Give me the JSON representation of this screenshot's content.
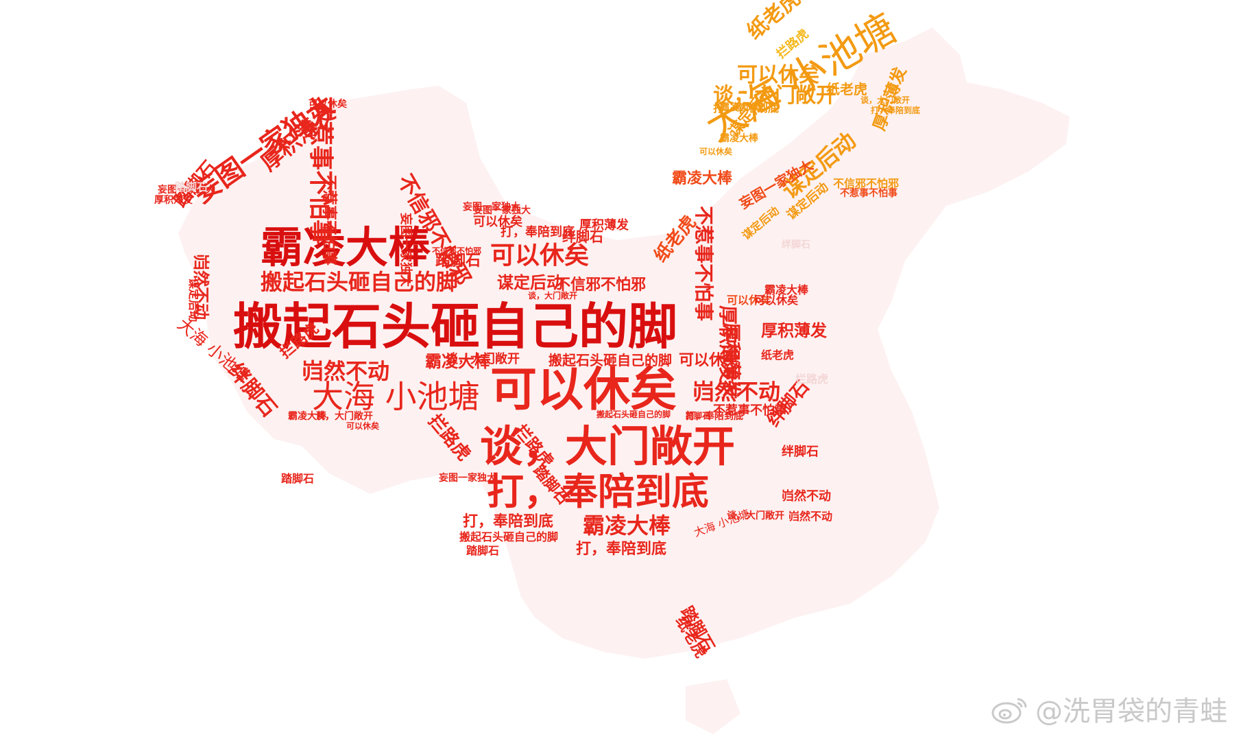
{
  "words": [
    "搬起石头砸自己的脚",
    "霸凌大棒",
    "可以休矣",
    "谈，大门敞开",
    "打，奉陪到底",
    "大海 小池塘",
    "妄图一家独大",
    "厚积薄发",
    "不惹事不怕事",
    "不信邪不怕邪",
    "岿然不动",
    "绊脚石",
    "踏脚石",
    "拦路虎",
    "纸老虎",
    "谋定后动"
  ],
  "colors": {
    "deep_red": "#d90f0f",
    "red": "#e8261c",
    "orange_red": "#f04a18",
    "orange": "#f39a12",
    "yellow": "#f5b81c",
    "pale": "#f4d6d6",
    "map_fill": "#fdf1f1"
  },
  "watermark": {
    "icon": "weibo-icon",
    "text": "@洗胃袋的青蛙"
  }
}
